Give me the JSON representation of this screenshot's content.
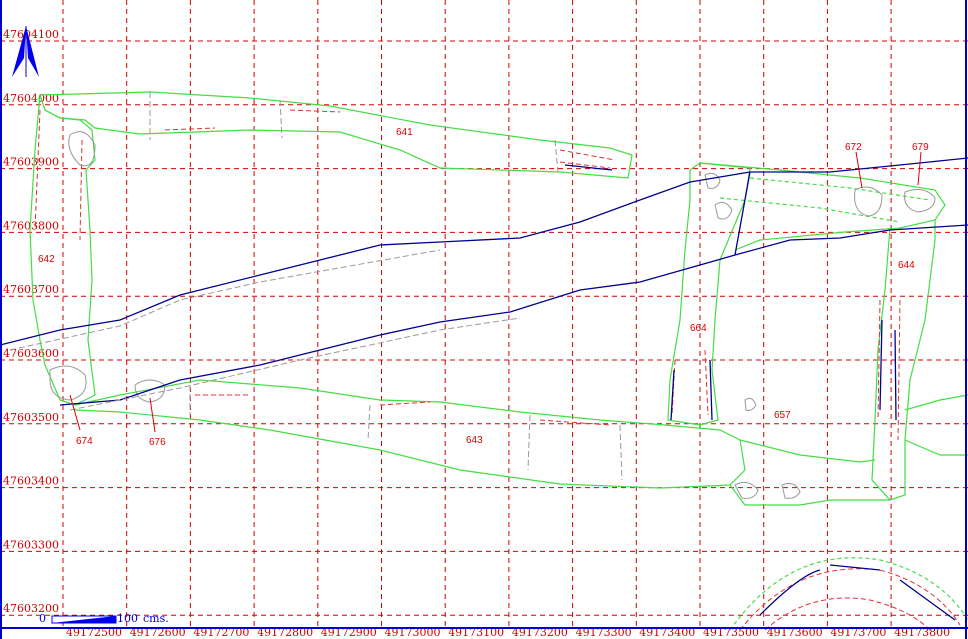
{
  "plan": {
    "easting_labels": [
      "49172500",
      "49172600",
      "49172700",
      "49172800",
      "49172900",
      "49173000",
      "49173100",
      "49173200",
      "49173300",
      "49173400",
      "49173500",
      "49173600",
      "49173700",
      "49173800"
    ],
    "northing_labels": [
      "47604100",
      "47604000",
      "47603900",
      "47603800",
      "47603700",
      "47603600",
      "47603500",
      "47603400",
      "47603300",
      "47603200"
    ],
    "scale_bar": {
      "start": "0",
      "end": "100",
      "unit": "cms."
    },
    "north_arrow": "north-arrow-icon",
    "features": [
      {
        "id": "641"
      },
      {
        "id": "642"
      },
      {
        "id": "643"
      },
      {
        "id": "644"
      },
      {
        "id": "664"
      },
      {
        "id": "657"
      },
      {
        "id": "672"
      },
      {
        "id": "679"
      },
      {
        "id": "674"
      },
      {
        "id": "676"
      }
    ],
    "colors": {
      "grid": "#d40000",
      "outline": "#44dd44",
      "section": "#000090",
      "frame": "#0000cc"
    }
  }
}
